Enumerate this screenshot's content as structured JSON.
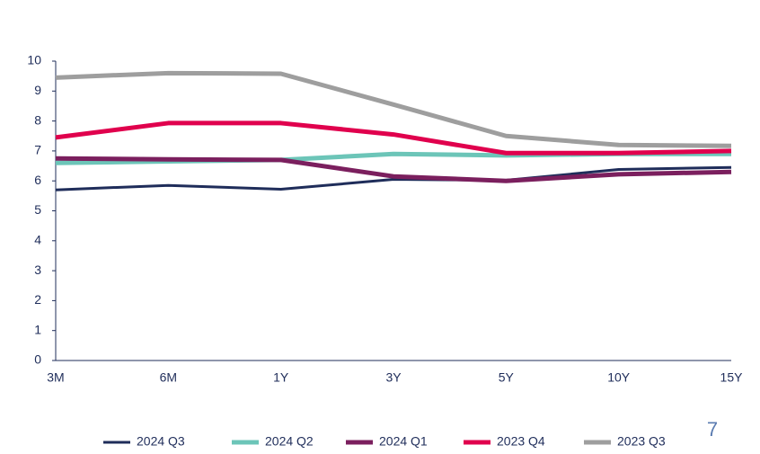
{
  "chart_data": {
    "type": "line",
    "categories": [
      "3M",
      "6M",
      "1Y",
      "3Y",
      "5Y",
      "10Y",
      "15Y"
    ],
    "series": [
      {
        "name": "2024 Q3",
        "color": "#1f2d5a",
        "values": [
          5.7,
          5.85,
          5.72,
          6.05,
          6.02,
          6.38,
          6.45
        ]
      },
      {
        "name": "2024 Q2",
        "color": "#6cc5b8",
        "values": [
          6.6,
          6.65,
          6.7,
          6.9,
          6.85,
          6.9,
          6.9
        ]
      },
      {
        "name": "2024 Q1",
        "color": "#7b1f5e",
        "values": [
          6.75,
          6.72,
          6.7,
          6.15,
          6.0,
          6.22,
          6.3
        ]
      },
      {
        "name": "2023 Q4",
        "color": "#e0004d",
        "values": [
          7.45,
          7.93,
          7.93,
          7.55,
          6.93,
          6.93,
          7.0
        ]
      },
      {
        "name": "2023 Q3",
        "color": "#9e9e9e",
        "values": [
          9.45,
          9.6,
          9.58,
          8.55,
          7.5,
          7.2,
          7.17
        ]
      }
    ],
    "ylim": [
      0,
      10
    ],
    "yticks": [
      0,
      1,
      2,
      3,
      4,
      5,
      6,
      7,
      8,
      9,
      10
    ],
    "grid": false
  },
  "page_number": "7"
}
